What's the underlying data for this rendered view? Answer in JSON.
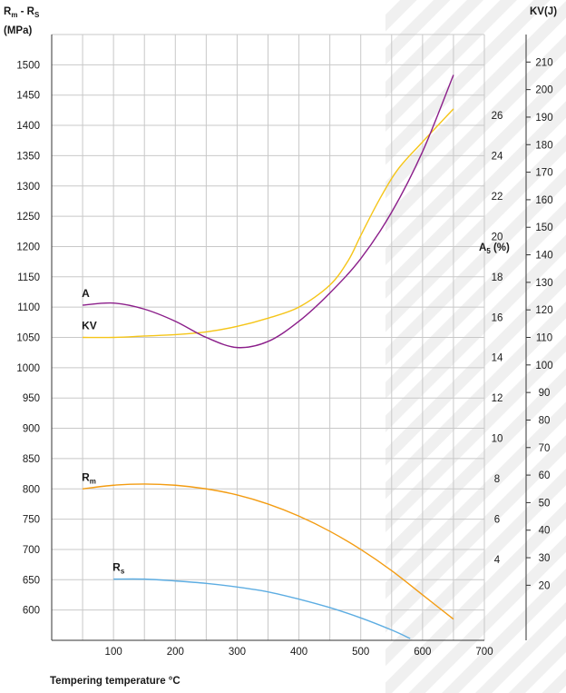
{
  "chart_data": {
    "type": "line",
    "xlabel": "Tempering temperature °C",
    "x_ticks": [
      100,
      200,
      300,
      400,
      500,
      600,
      700
    ],
    "xlim": [
      0,
      700
    ],
    "axes": {
      "left": {
        "title_main": "R",
        "title_sub1": "m",
        "title_mid": " - R",
        "title_sub2": "S",
        "unit": "(MPa)",
        "ticks": [
          600,
          650,
          700,
          750,
          800,
          850,
          900,
          950,
          1000,
          1050,
          1100,
          1150,
          1200,
          1250,
          1300,
          1350,
          1400,
          1450,
          1500
        ],
        "range": [
          550,
          1550
        ]
      },
      "right_inner": {
        "title_main": "A",
        "title_sub": "5",
        "title_unit": " (%)",
        "ticks": [
          4,
          6,
          8,
          10,
          12,
          14,
          16,
          18,
          20,
          22,
          24,
          26
        ],
        "range": [
          0,
          30
        ]
      },
      "right_outer": {
        "title": "KV(J)",
        "ticks": [
          20,
          30,
          40,
          50,
          60,
          70,
          80,
          90,
          100,
          110,
          120,
          130,
          140,
          150,
          160,
          170,
          180,
          190,
          200,
          210
        ],
        "range": [
          0,
          220
        ]
      }
    },
    "grid": true,
    "series": [
      {
        "name": "KV",
        "label_main": "KV",
        "label_sub": "",
        "axis": "right_outer",
        "color": "#f5c518",
        "x": [
          50,
          100,
          150,
          200,
          250,
          300,
          350,
          400,
          450,
          480,
          500,
          530,
          560,
          600,
          650
        ],
        "y": [
          110,
          110,
          110.5,
          111,
          112,
          114,
          117,
          121,
          129,
          138,
          147,
          160,
          171,
          181,
          193
        ]
      },
      {
        "name": "A",
        "label_main": "A",
        "label_sub": "",
        "axis": "right_inner",
        "color": "#8b1e8a",
        "x": [
          50,
          100,
          150,
          200,
          250,
          300,
          350,
          400,
          450,
          500,
          550,
          600,
          650
        ],
        "y": [
          16.6,
          16.7,
          16.4,
          15.8,
          15,
          14.5,
          14.8,
          15.8,
          17.2,
          18.9,
          21.2,
          24.2,
          28
        ]
      },
      {
        "name": "Rm",
        "label_main": "R",
        "label_sub": "m",
        "axis": "left",
        "color": "#f39c12",
        "x": [
          50,
          100,
          150,
          200,
          250,
          300,
          350,
          400,
          450,
          500,
          550,
          600,
          650
        ],
        "y": [
          800,
          806,
          808,
          806,
          800,
          790,
          775,
          755,
          730,
          700,
          665,
          625,
          585
        ]
      },
      {
        "name": "Rs",
        "label_main": "R",
        "label_sub": "s",
        "axis": "left",
        "color": "#5dade2",
        "x": [
          100,
          150,
          200,
          250,
          300,
          350,
          400,
          450,
          500,
          550,
          580
        ],
        "y": [
          651,
          651,
          648,
          644,
          638,
          630,
          618,
          604,
          587,
          567,
          553
        ]
      }
    ]
  }
}
